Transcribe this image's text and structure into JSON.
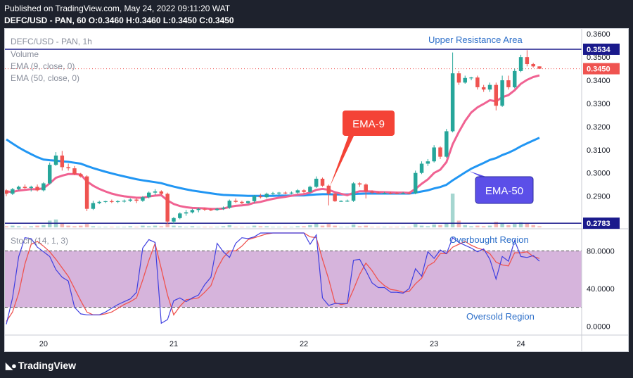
{
  "header": {
    "published": "Published on TradingView.com, May 24, 2022 09:11:20 WAT",
    "ohlc": "DEFC/USD - PAN, 60  O:0.3460 H:0.3460 L:0.3450 C:0.3450"
  },
  "legend": {
    "symbol": "DEFC/USD - PAN, 1h",
    "volume": "Volume",
    "ema9": "EMA (9, close, 0)",
    "ema50": "EMA (50, close, 0)",
    "stoch": "Stoch (14, 1, 3)"
  },
  "annotations": {
    "upper_resistance": "Upper Resistance Area",
    "ema9_callout": "EMA-9",
    "ema50_callout": "EMA-50",
    "overbought": "Overbought Region",
    "oversold": "Oversold Region"
  },
  "footer": {
    "logo_text": "TradingView",
    "logo_icon": "tradingview-logo-icon"
  },
  "colors": {
    "up": "#26a69a",
    "down": "#ef5350",
    "ema9": "#f06292",
    "ema50": "#2196f3",
    "stoch_k": "#3f3fe0",
    "stoch_d": "#ef5350",
    "band": "#d6b4dc",
    "level_line": "#1a1a8c",
    "callout_red": "#f44336",
    "callout_blue": "#5b4fe8"
  },
  "chart_data": [
    {
      "type": "candlestick",
      "price_axis_ticks": [
        "0.3600",
        "0.3500",
        "0.3400",
        "0.3300",
        "0.3200",
        "0.3100",
        "0.3000",
        "0.2900"
      ],
      "x_tick_labels": [
        "20",
        "21",
        "22",
        "23",
        "24"
      ],
      "ylim": [
        0.2765,
        0.3622
      ],
      "levels": [
        {
          "label": "0.3534",
          "value": 0.3534
        },
        {
          "label": "0.2783",
          "value": 0.2783
        }
      ],
      "last_price": {
        "label": "0.3450",
        "value": 0.345
      },
      "candles": [
        [
          0.2925,
          0.293,
          0.29,
          0.291
        ],
        [
          0.291,
          0.2935,
          0.2905,
          0.293
        ],
        [
          0.293,
          0.2945,
          0.2925,
          0.294
        ],
        [
          0.294,
          0.295,
          0.293,
          0.2935
        ],
        [
          0.2935,
          0.2945,
          0.292,
          0.294
        ],
        [
          0.294,
          0.295,
          0.292,
          0.2925
        ],
        [
          0.2925,
          0.296,
          0.292,
          0.2955
        ],
        [
          0.2955,
          0.3045,
          0.295,
          0.3035
        ],
        [
          0.3035,
          0.309,
          0.303,
          0.3075
        ],
        [
          0.3075,
          0.3095,
          0.301,
          0.3025
        ],
        [
          0.3025,
          0.304,
          0.301,
          0.302
        ],
        [
          0.302,
          0.303,
          0.299,
          0.2995
        ],
        [
          0.2995,
          0.3,
          0.298,
          0.2985
        ],
        [
          0.2985,
          0.299,
          0.2835,
          0.2845
        ],
        [
          0.2845,
          0.288,
          0.284,
          0.287
        ],
        [
          0.287,
          0.288,
          0.2865,
          0.2875
        ],
        [
          0.2875,
          0.288,
          0.287,
          0.2878
        ],
        [
          0.2878,
          0.2885,
          0.287,
          0.2876
        ],
        [
          0.2876,
          0.2882,
          0.287,
          0.2878
        ],
        [
          0.2878,
          0.2885,
          0.2872,
          0.288
        ],
        [
          0.288,
          0.289,
          0.2875,
          0.2885
        ],
        [
          0.2885,
          0.289,
          0.287,
          0.288
        ],
        [
          0.288,
          0.29,
          0.2875,
          0.2895
        ],
        [
          0.2895,
          0.292,
          0.289,
          0.2915
        ],
        [
          0.2915,
          0.293,
          0.2905,
          0.292
        ],
        [
          0.292,
          0.2925,
          0.2905,
          0.291
        ],
        [
          0.291,
          0.2915,
          0.278,
          0.279
        ],
        [
          0.279,
          0.281,
          0.278,
          0.2805
        ],
        [
          0.2805,
          0.283,
          0.28,
          0.2825
        ],
        [
          0.2825,
          0.284,
          0.2815,
          0.283
        ],
        [
          0.283,
          0.2845,
          0.2825,
          0.284
        ],
        [
          0.284,
          0.285,
          0.283,
          0.2845
        ],
        [
          0.2845,
          0.285,
          0.2835,
          0.2842
        ],
        [
          0.2842,
          0.2848,
          0.2835,
          0.284
        ],
        [
          0.284,
          0.285,
          0.2835,
          0.2845
        ],
        [
          0.2845,
          0.2855,
          0.284,
          0.285
        ],
        [
          0.285,
          0.2885,
          0.2845,
          0.288
        ],
        [
          0.288,
          0.289,
          0.287,
          0.2875
        ],
        [
          0.2875,
          0.288,
          0.2865,
          0.287
        ],
        [
          0.287,
          0.288,
          0.2865,
          0.2878
        ],
        [
          0.2878,
          0.2905,
          0.287,
          0.29
        ],
        [
          0.29,
          0.291,
          0.289,
          0.2895
        ],
        [
          0.2895,
          0.2915,
          0.289,
          0.291
        ],
        [
          0.291,
          0.2918,
          0.2905,
          0.2912
        ],
        [
          0.2912,
          0.2918,
          0.2905,
          0.2915
        ],
        [
          0.2915,
          0.292,
          0.2908,
          0.2914
        ],
        [
          0.2914,
          0.292,
          0.2908,
          0.2915
        ],
        [
          0.2915,
          0.293,
          0.291,
          0.2925
        ],
        [
          0.2925,
          0.293,
          0.291,
          0.2918
        ],
        [
          0.2918,
          0.2945,
          0.2915,
          0.294
        ],
        [
          0.294,
          0.2985,
          0.2935,
          0.2975
        ],
        [
          0.2975,
          0.298,
          0.294,
          0.2945
        ],
        [
          0.2945,
          0.295,
          0.286,
          0.291
        ],
        [
          0.291,
          0.2915,
          0.2875,
          0.2878
        ],
        [
          0.2878,
          0.2882,
          0.2875,
          0.2879
        ],
        [
          0.2879,
          0.2885,
          0.2875,
          0.288
        ],
        [
          0.288,
          0.296,
          0.2875,
          0.2955
        ],
        [
          0.2955,
          0.296,
          0.294,
          0.295
        ],
        [
          0.295,
          0.2955,
          0.289,
          0.292
        ],
        [
          0.292,
          0.2925,
          0.291,
          0.2915
        ],
        [
          0.2915,
          0.292,
          0.291,
          0.2912
        ],
        [
          0.2912,
          0.2918,
          0.2908,
          0.2914
        ],
        [
          0.2914,
          0.2918,
          0.2908,
          0.2913
        ],
        [
          0.2913,
          0.2918,
          0.2908,
          0.2912
        ],
        [
          0.2912,
          0.2918,
          0.2908,
          0.2913
        ],
        [
          0.2913,
          0.2918,
          0.2908,
          0.2912
        ],
        [
          0.2912,
          0.301,
          0.2908,
          0.3
        ],
        [
          0.3,
          0.305,
          0.2995,
          0.304
        ],
        [
          0.304,
          0.306,
          0.303,
          0.305
        ],
        [
          0.305,
          0.312,
          0.3045,
          0.311
        ],
        [
          0.311,
          0.3115,
          0.306,
          0.307
        ],
        [
          0.307,
          0.319,
          0.3065,
          0.318
        ],
        [
          0.318,
          0.352,
          0.3175,
          0.343
        ],
        [
          0.343,
          0.344,
          0.338,
          0.339
        ],
        [
          0.339,
          0.342,
          0.3385,
          0.341
        ],
        [
          0.341,
          0.3415,
          0.34,
          0.3412
        ],
        [
          0.3412,
          0.342,
          0.336,
          0.337
        ],
        [
          0.337,
          0.338,
          0.335,
          0.336
        ],
        [
          0.336,
          0.339,
          0.335,
          0.338
        ],
        [
          0.338,
          0.339,
          0.327,
          0.329
        ],
        [
          0.329,
          0.342,
          0.3285,
          0.34
        ],
        [
          0.34,
          0.342,
          0.336,
          0.337
        ],
        [
          0.337,
          0.345,
          0.3365,
          0.344
        ],
        [
          0.344,
          0.351,
          0.3435,
          0.35
        ],
        [
          0.35,
          0.353,
          0.346,
          0.347
        ],
        [
          0.347,
          0.3475,
          0.3455,
          0.346
        ],
        [
          0.346,
          0.346,
          0.345,
          0.345
        ]
      ],
      "ema9": [
        0.292,
        0.2918,
        0.2924,
        0.2927,
        0.293,
        0.2929,
        0.2934,
        0.2955,
        0.2979,
        0.2988,
        0.2995,
        0.2995,
        0.2993,
        0.2963,
        0.2945,
        0.2931,
        0.292,
        0.2911,
        0.2904,
        0.2899,
        0.2896,
        0.2893,
        0.2893,
        0.2898,
        0.2902,
        0.2904,
        0.2881,
        0.2866,
        0.2857,
        0.2852,
        0.2849,
        0.2848,
        0.2847,
        0.2845,
        0.2845,
        0.2846,
        0.2853,
        0.2858,
        0.286,
        0.2863,
        0.2871,
        0.2875,
        0.2882,
        0.2888,
        0.2893,
        0.2897,
        0.2901,
        0.2906,
        0.2908,
        0.2915,
        0.2927,
        0.2931,
        0.2927,
        0.2917,
        0.291,
        0.2904,
        0.2914,
        0.2921,
        0.2921,
        0.292,
        0.2918,
        0.2917,
        0.2916,
        0.2915,
        0.2915,
        0.2914,
        0.2931,
        0.2953,
        0.2972,
        0.3,
        0.3014,
        0.3047,
        0.3124,
        0.3177,
        0.3224,
        0.3261,
        0.3283,
        0.3298,
        0.3314,
        0.3309,
        0.3327,
        0.3336,
        0.3357,
        0.3385,
        0.3402,
        0.3414,
        0.3421
      ],
      "ema50": [
        0.3145,
        0.3127,
        0.311,
        0.3095,
        0.3081,
        0.3068,
        0.3058,
        0.3055,
        0.3053,
        0.305,
        0.3048,
        0.3044,
        0.304,
        0.303,
        0.3021,
        0.3013,
        0.3005,
        0.2998,
        0.2991,
        0.2985,
        0.2979,
        0.2973,
        0.2968,
        0.2964,
        0.296,
        0.2956,
        0.2948,
        0.2941,
        0.2935,
        0.2929,
        0.2924,
        0.292,
        0.2916,
        0.2912,
        0.2908,
        0.2905,
        0.2904,
        0.2903,
        0.2902,
        0.2901,
        0.2901,
        0.2901,
        0.2901,
        0.2901,
        0.2902,
        0.2902,
        0.2902,
        0.2903,
        0.2903,
        0.2905,
        0.2907,
        0.2908,
        0.2908,
        0.2907,
        0.2907,
        0.2907,
        0.2909,
        0.291,
        0.2911,
        0.2911,
        0.2911,
        0.2911,
        0.2911,
        0.2911,
        0.2911,
        0.2911,
        0.2915,
        0.292,
        0.2925,
        0.2933,
        0.2939,
        0.2949,
        0.2968,
        0.2985,
        0.3002,
        0.3018,
        0.3031,
        0.3043,
        0.3056,
        0.3064,
        0.3077,
        0.3087,
        0.31,
        0.3115,
        0.3128,
        0.314,
        0.3152
      ],
      "volume": [
        2,
        3,
        2,
        1,
        2,
        3,
        4,
        12,
        14,
        8,
        3,
        2,
        3,
        6,
        2,
        1,
        1,
        1,
        1,
        1,
        2,
        1,
        3,
        2,
        3,
        2,
        7,
        3,
        2,
        1,
        2,
        1,
        1,
        1,
        1,
        2,
        4,
        1,
        1,
        1,
        3,
        2,
        2,
        1,
        1,
        1,
        1,
        2,
        2,
        4,
        8,
        3,
        6,
        3,
        1,
        1,
        5,
        2,
        3,
        1,
        1,
        1,
        1,
        1,
        1,
        1,
        6,
        3,
        2,
        5,
        4,
        8,
        60,
        12,
        4,
        2,
        3,
        2,
        3,
        10,
        8,
        4,
        6,
        9,
        7,
        4,
        2
      ]
    },
    {
      "type": "line",
      "name": "Stoch (14, 1, 3)",
      "yticks": [
        "80.0000",
        "40.0000",
        "0.0000"
      ],
      "ylim": [
        -8,
        102
      ],
      "band": [
        20,
        80
      ],
      "k": [
        2,
        30,
        74,
        94,
        93,
        84,
        79,
        74,
        60,
        52,
        48,
        20,
        13,
        12,
        12,
        12,
        15,
        19,
        23,
        26,
        29,
        36,
        83,
        92,
        89,
        3,
        7,
        27,
        30,
        26,
        30,
        33,
        44,
        52,
        88,
        79,
        73,
        88,
        94,
        93,
        95,
        99,
        99,
        99,
        99,
        99,
        99,
        99,
        99,
        87,
        97,
        30,
        22,
        24,
        24,
        24,
        70,
        71,
        59,
        46,
        41,
        41,
        36,
        36,
        35,
        40,
        61,
        53,
        79,
        72,
        81,
        77,
        94,
        89,
        86,
        83,
        79,
        82,
        71,
        50,
        74,
        69,
        91,
        74,
        73,
        75,
        69
      ],
      "d": [
        5,
        15,
        35,
        66,
        87,
        90,
        85,
        79,
        71,
        62,
        53,
        40,
        27,
        15,
        12,
        12,
        13,
        15,
        19,
        23,
        26,
        30,
        49,
        70,
        88,
        61,
        33,
        12,
        21,
        28,
        29,
        30,
        36,
        43,
        61,
        73,
        80,
        80,
        85,
        92,
        94,
        96,
        98,
        99,
        99,
        99,
        99,
        99,
        99,
        95,
        94,
        71,
        50,
        25,
        23,
        24,
        39,
        55,
        67,
        59,
        49,
        43,
        39,
        38,
        36,
        37,
        45,
        51,
        64,
        68,
        77,
        77,
        84,
        87,
        90,
        86,
        83,
        81,
        77,
        68,
        65,
        64,
        78,
        78,
        79,
        74,
        72
      ]
    }
  ]
}
